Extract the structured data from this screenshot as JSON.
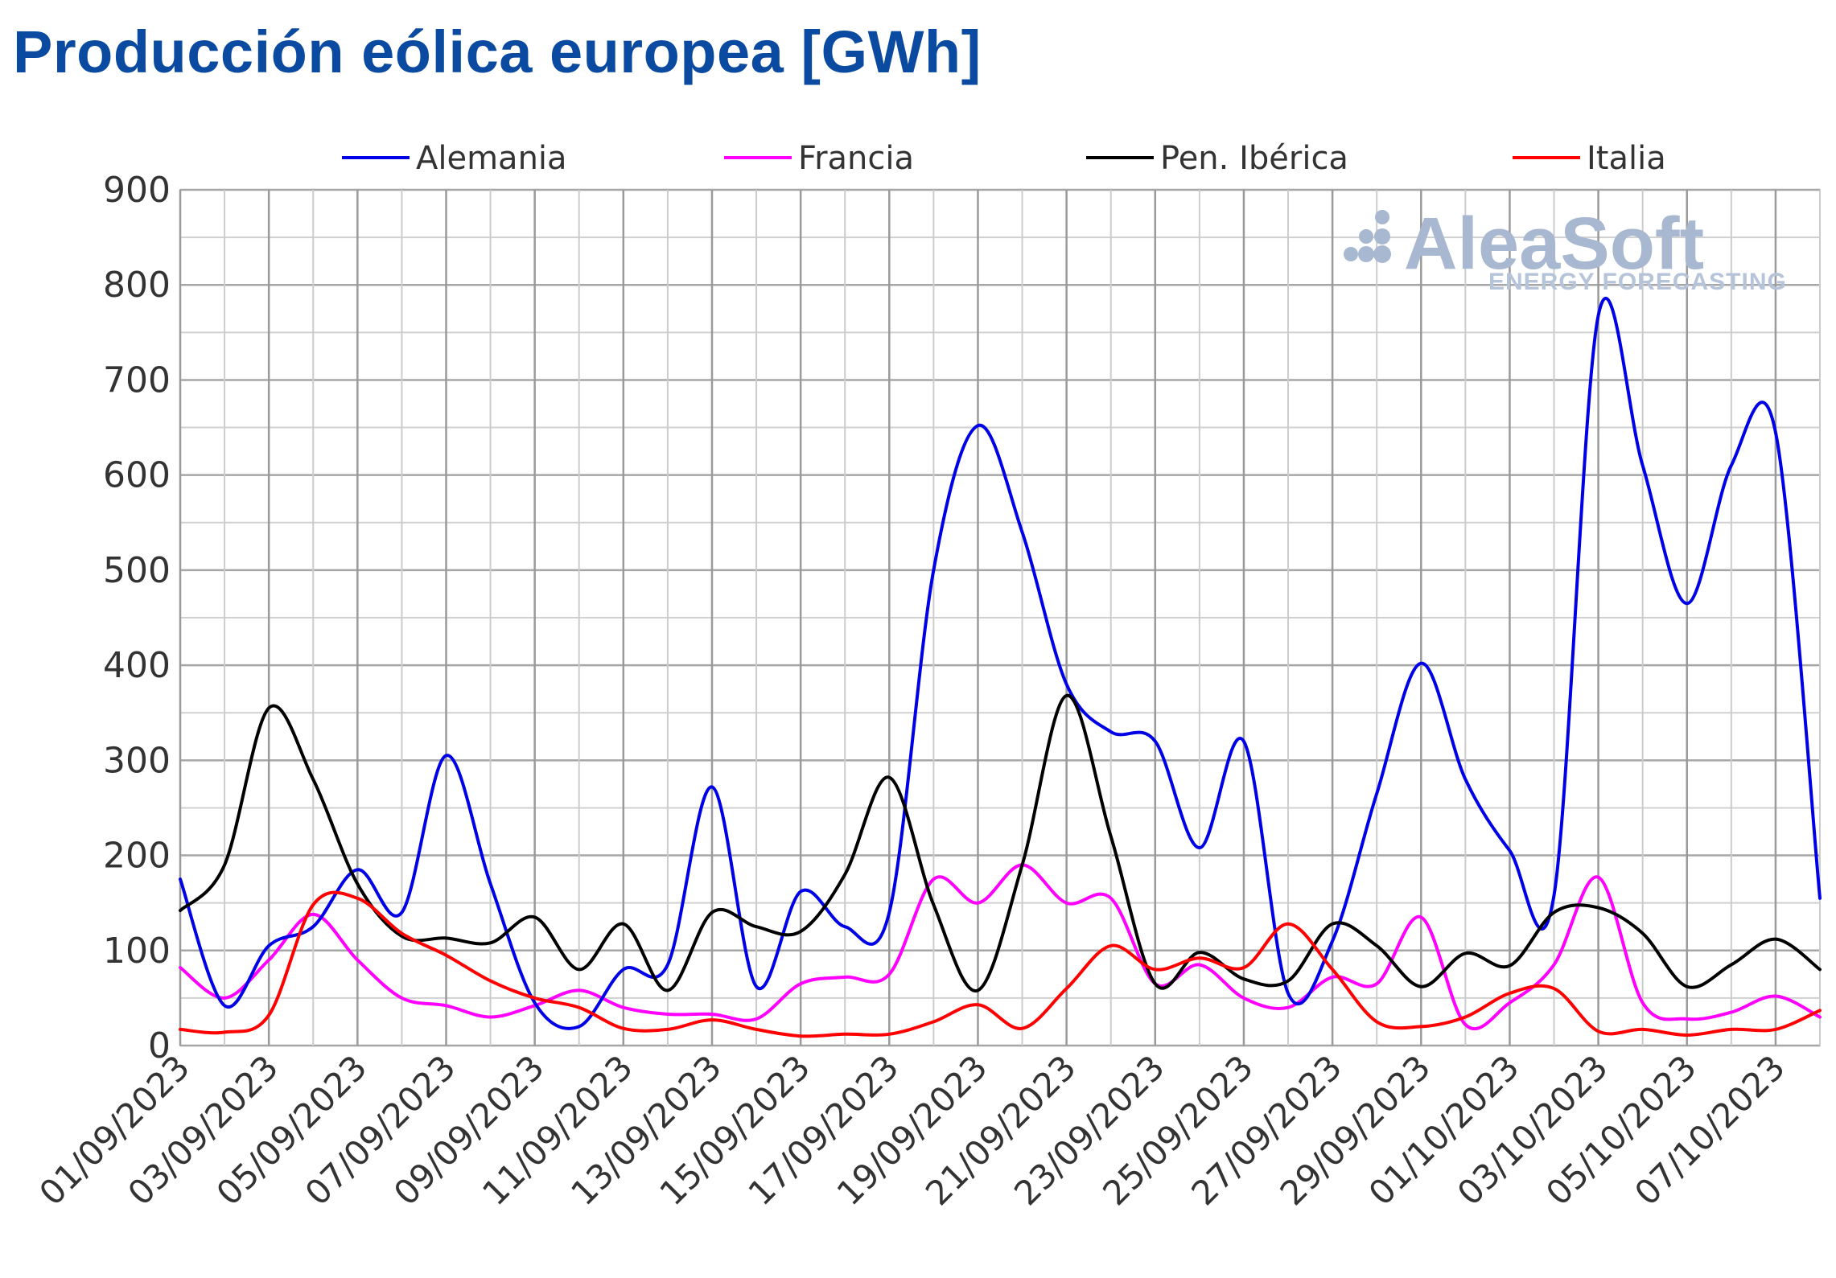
{
  "title": "Producción eólica europea [GWh]",
  "watermark": {
    "brand": "AleaSoft",
    "tagline": "ENERGY FORECASTING"
  },
  "chart_data": {
    "type": "line",
    "title": "Producción eólica europea [GWh]",
    "ylim": [
      0,
      900
    ],
    "yticks": [
      "0",
      "100",
      "200",
      "300",
      "400",
      "500",
      "600",
      "700",
      "800",
      "900"
    ],
    "xtick_labels": [
      "01/09/2023",
      "03/09/2023",
      "05/09/2023",
      "07/09/2023",
      "09/09/2023",
      "11/09/2023",
      "13/09/2023",
      "15/09/2023",
      "17/09/2023",
      "19/09/2023",
      "21/09/2023",
      "23/09/2023",
      "25/09/2023",
      "27/09/2023",
      "29/09/2023",
      "01/10/2023",
      "03/10/2023",
      "05/10/2023",
      "07/10/2023"
    ],
    "x": [
      "01/09/2023",
      "02/09/2023",
      "03/09/2023",
      "04/09/2023",
      "05/09/2023",
      "06/09/2023",
      "07/09/2023",
      "08/09/2023",
      "09/09/2023",
      "10/09/2023",
      "11/09/2023",
      "12/09/2023",
      "13/09/2023",
      "14/09/2023",
      "15/09/2023",
      "16/09/2023",
      "17/09/2023",
      "18/09/2023",
      "19/09/2023",
      "20/09/2023",
      "21/09/2023",
      "22/09/2023",
      "23/09/2023",
      "24/09/2023",
      "25/09/2023",
      "26/09/2023",
      "27/09/2023",
      "28/09/2023",
      "29/09/2023",
      "30/09/2023",
      "01/10/2023",
      "02/10/2023",
      "03/10/2023",
      "04/10/2023",
      "05/10/2023",
      "06/10/2023",
      "07/10/2023",
      "08/10/2023"
    ],
    "grid": true,
    "legend_position": "top",
    "series": [
      {
        "name": "Alemania",
        "color": "#0000e6",
        "values": [
          175,
          42,
          105,
          125,
          185,
          140,
          305,
          170,
          45,
          20,
          80,
          85,
          272,
          62,
          162,
          125,
          140,
          500,
          652,
          540,
          380,
          330,
          320,
          208,
          320,
          55,
          110,
          265,
          402,
          280,
          205,
          158,
          768,
          610,
          465,
          610,
          645,
          155
        ]
      },
      {
        "name": "Francia",
        "color": "#ff00ff",
        "values": [
          82,
          50,
          90,
          138,
          90,
          50,
          42,
          30,
          42,
          58,
          40,
          33,
          33,
          28,
          65,
          72,
          75,
          175,
          150,
          190,
          150,
          155,
          65,
          85,
          50,
          40,
          72,
          65,
          135,
          22,
          45,
          85,
          177,
          45,
          28,
          35,
          52,
          30
        ]
      },
      {
        "name": "Pen. Ibérica",
        "color": "#000000",
        "values": [
          142,
          190,
          355,
          280,
          170,
          115,
          113,
          108,
          135,
          80,
          128,
          58,
          140,
          125,
          120,
          180,
          282,
          148,
          58,
          190,
          368,
          220,
          65,
          98,
          70,
          68,
          128,
          105,
          62,
          97,
          84,
          140,
          145,
          118,
          62,
          85,
          112,
          80
        ]
      },
      {
        "name": "Italia",
        "color": "#ff0000",
        "values": [
          17,
          14,
          32,
          148,
          155,
          118,
          95,
          68,
          50,
          40,
          18,
          17,
          27,
          17,
          10,
          12,
          12,
          25,
          43,
          18,
          60,
          105,
          80,
          92,
          82,
          128,
          80,
          25,
          20,
          30,
          55,
          60,
          15,
          17,
          11,
          17,
          17,
          37
        ]
      }
    ]
  }
}
